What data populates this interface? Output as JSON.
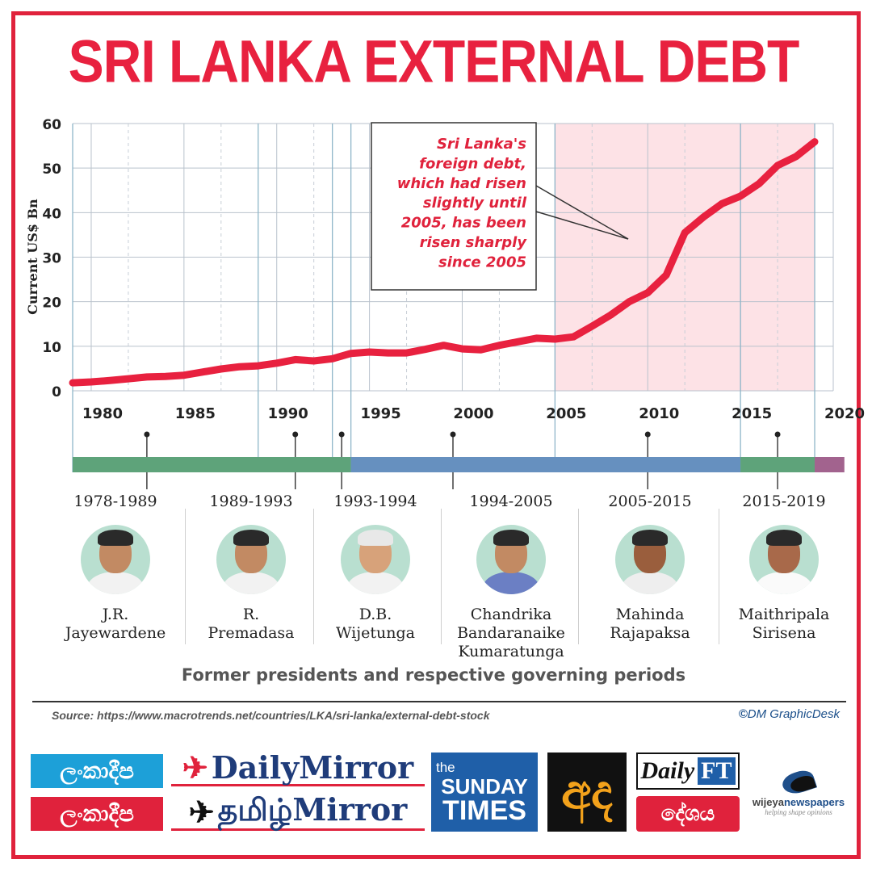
{
  "title": "SRI LANKA EXTERNAL DEBT",
  "chart_data": {
    "type": "line",
    "ylabel": "Current US$ Bn",
    "xlim": [
      1979,
      2020
    ],
    "ylim": [
      0,
      60
    ],
    "y_ticks": [
      0,
      10,
      20,
      30,
      40,
      50,
      60
    ],
    "x_ticks": [
      1980,
      1985,
      1990,
      1995,
      2000,
      2005,
      2010,
      2015,
      2020
    ],
    "x": [
      1979,
      1980,
      1981,
      1982,
      1983,
      1984,
      1985,
      1986,
      1987,
      1988,
      1989,
      1990,
      1991,
      1992,
      1993,
      1994,
      1995,
      1996,
      1997,
      1998,
      1999,
      2000,
      2001,
      2002,
      2003,
      2004,
      2005,
      2006,
      2007,
      2008,
      2009,
      2010,
      2011,
      2012,
      2013,
      2014,
      2015,
      2016,
      2017,
      2018,
      2019
    ],
    "values": [
      1.8,
      2.0,
      2.3,
      2.7,
      3.1,
      3.2,
      3.5,
      4.2,
      4.9,
      5.4,
      5.6,
      6.2,
      7.0,
      6.7,
      7.2,
      8.4,
      8.7,
      8.5,
      8.5,
      9.3,
      10.2,
      9.4,
      9.2,
      10.2,
      11.0,
      11.8,
      11.6,
      12.1,
      14.5,
      17.0,
      20.0,
      22.0,
      26.0,
      35.5,
      39.0,
      42.0,
      43.7,
      46.5,
      50.6,
      52.6,
      55.9
    ],
    "line_color": "#e8213f",
    "grid": true,
    "highlight_range": [
      2005,
      2019
    ],
    "highlight_color": "#fde2e6",
    "annotation": "Sri Lanka's foreign debt, which had risen slightly until 2005, has been risen sharply since 2005",
    "annotation_lines": [
      "Sri Lanka's",
      "foreign debt,",
      "which had risen",
      "slightly until",
      "2005, has been",
      "risen sharply",
      "since 2005"
    ],
    "timeline": [
      {
        "from": 1979,
        "to": 1994,
        "color": "#5ea37a"
      },
      {
        "from": 1994,
        "to": 2015,
        "color": "#6690bf"
      },
      {
        "from": 2015,
        "to": 2019,
        "color": "#5ea37a"
      },
      {
        "from": 2019,
        "to": 2020.6,
        "color": "#a2638e"
      }
    ],
    "period_markers": [
      1983,
      1991,
      1993.5,
      1999.5,
      2010,
      2017
    ]
  },
  "presidents": [
    {
      "period": "1978-1989",
      "name_lines": [
        "J.R.",
        "Jayewardene"
      ]
    },
    {
      "period": "1989-1993",
      "name_lines": [
        "R.",
        "Premadasa"
      ]
    },
    {
      "period": "1993-1994",
      "name_lines": [
        "D.B.",
        "Wijetunga"
      ]
    },
    {
      "period": "1994-2005",
      "name_lines": [
        "Chandrika",
        "Bandaranaike",
        "Kumaratunga"
      ]
    },
    {
      "period": "2005-2015",
      "name_lines": [
        "Mahinda",
        "Rajapaksa"
      ]
    },
    {
      "period": "2015-2019",
      "name_lines": [
        "Maithripala",
        "Sirisena"
      ]
    }
  ],
  "caption": "Former presidents and respective governing periods",
  "source": "Source: https://www.macrotrends.net/countries/LKA/sri-lanka/external-debt-stock",
  "credit": "DM GraphicDesk",
  "credit_mark": "©",
  "logos": {
    "lankadeepa_1": "ලංකාදීප",
    "lankadeepa_2": "ලංකාදීප",
    "daily_mirror": "DailyMirror",
    "tamil_mirror": "தமிழ்Mirror",
    "sunday_times_a": "the",
    "sunday_times_b": "SUNDAY",
    "sunday_times_c": "TIMES",
    "ada": "අද",
    "daily_ft_a": "Daily",
    "daily_ft_b": "FT",
    "deshaya": "දේශය",
    "wijeya_a": "wijeya",
    "wijeya_b": "newspapers",
    "wijeya_tag": "helping shape opinions"
  }
}
